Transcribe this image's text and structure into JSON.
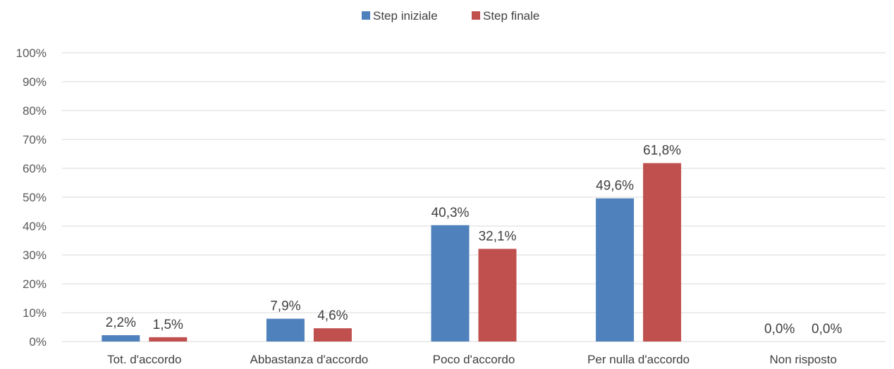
{
  "chart_data": {
    "type": "bar",
    "title": "",
    "xlabel": "",
    "ylabel": "",
    "ylim": [
      0,
      100
    ],
    "y_ticks": [
      "0%",
      "10%",
      "20%",
      "30%",
      "40%",
      "50%",
      "60%",
      "70%",
      "80%",
      "90%",
      "100%"
    ],
    "grid": true,
    "legend_position": "top-center",
    "categories": [
      "Tot. d'accordo",
      "Abbastanza d'accordo",
      "Poco d'accordo",
      "Per nulla d'accordo",
      "Non risposto"
    ],
    "series": [
      {
        "name": "Step iniziale",
        "color": "#4f81bd",
        "values": [
          2.2,
          7.9,
          40.3,
          49.6,
          0.0
        ],
        "labels": [
          "2,2%",
          "7,9%",
          "40,3%",
          "49,6%",
          "0,0%"
        ]
      },
      {
        "name": "Step finale",
        "color": "#c0504d",
        "values": [
          1.5,
          4.6,
          32.1,
          61.8,
          0.0
        ],
        "labels": [
          "1,5%",
          "4,6%",
          "32,1%",
          "61,8%",
          "0,0%"
        ]
      }
    ]
  }
}
